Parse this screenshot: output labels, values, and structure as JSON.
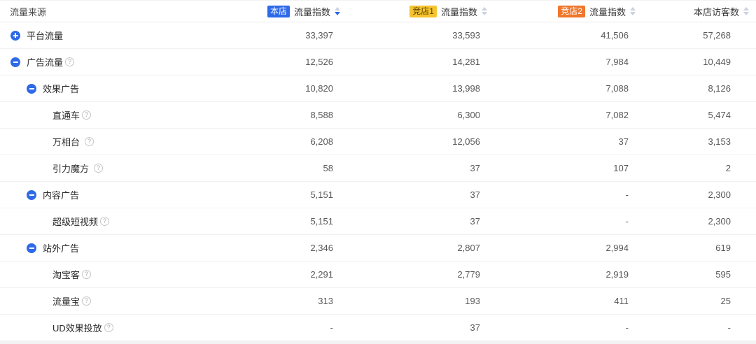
{
  "table": {
    "source_header": "流量来源",
    "help_glyph": "?",
    "columns": [
      {
        "badge": "本店",
        "badge_type": "shop",
        "label": "流量指数",
        "sort": "desc"
      },
      {
        "badge": "竞店1",
        "badge_type": "comp1",
        "label": "流量指数",
        "sort": "none"
      },
      {
        "badge": "竞店2",
        "badge_type": "comp2",
        "label": "流量指数",
        "sort": "none"
      },
      {
        "badge": null,
        "badge_type": null,
        "label": "本店访客数",
        "sort": "none"
      }
    ],
    "colors": {
      "accent_blue": "#2e6ae8",
      "badge_yellow": "#f6c42e",
      "badge_orange": "#f0772c",
      "active_sort": "#2e6ae8"
    },
    "rows": [
      {
        "label": "平台流量",
        "level": 1,
        "toggle": "plus",
        "help": false,
        "values": [
          "33,397",
          "33,593",
          "41,506",
          "57,268"
        ]
      },
      {
        "label": "广告流量",
        "level": 1,
        "toggle": "minus",
        "help": true,
        "values": [
          "12,526",
          "14,281",
          "7,984",
          "10,449"
        ]
      },
      {
        "label": "效果广告",
        "level": 2,
        "toggle": "minus",
        "help": false,
        "values": [
          "10,820",
          "13,998",
          "7,088",
          "8,126"
        ]
      },
      {
        "label": "直通车",
        "level": 3,
        "toggle": null,
        "help": true,
        "values": [
          "8,588",
          "6,300",
          "7,082",
          "5,474"
        ]
      },
      {
        "label": "万相台",
        "level": 3,
        "toggle": null,
        "help": true,
        "help_spaced": true,
        "values": [
          "6,208",
          "12,056",
          "37",
          "3,153"
        ]
      },
      {
        "label": "引力魔方",
        "level": 3,
        "toggle": null,
        "help": true,
        "help_spaced": true,
        "values": [
          "58",
          "37",
          "107",
          "2"
        ]
      },
      {
        "label": "内容广告",
        "level": 2,
        "toggle": "minus",
        "help": false,
        "values": [
          "5,151",
          "37",
          "-",
          "2,300"
        ]
      },
      {
        "label": "超级短视频",
        "level": 3,
        "toggle": null,
        "help": true,
        "values": [
          "5,151",
          "37",
          "-",
          "2,300"
        ]
      },
      {
        "label": "站外广告",
        "level": 2,
        "toggle": "minus",
        "help": false,
        "values": [
          "2,346",
          "2,807",
          "2,994",
          "619"
        ]
      },
      {
        "label": "淘宝客",
        "level": 3,
        "toggle": null,
        "help": true,
        "values": [
          "2,291",
          "2,779",
          "2,919",
          "595"
        ]
      },
      {
        "label": "流量宝",
        "level": 3,
        "toggle": null,
        "help": true,
        "values": [
          "313",
          "193",
          "411",
          "25"
        ]
      },
      {
        "label": "UD效果投放",
        "level": 3,
        "toggle": null,
        "help": true,
        "values": [
          "-",
          "37",
          "-",
          "-"
        ]
      }
    ]
  }
}
